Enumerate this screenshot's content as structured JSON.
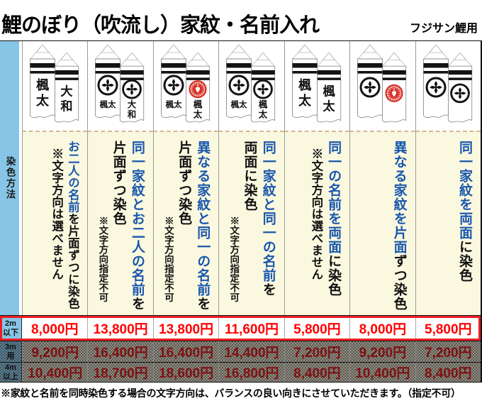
{
  "header": {
    "title": "鯉のぼり（吹流し）家紋・名前入れ",
    "subtitle": "フジサン鯉用"
  },
  "sidebar_label": "染色方法",
  "colors": {
    "accent_blue": "#1a57ad",
    "table_blue": "#86C5E6",
    "cream": "#FAF8DF",
    "price_red": "#FF0000",
    "border_red": "#ED1C24",
    "crest_red": "#D8352B",
    "crest_black": "#131313",
    "disabled_red": "#7E1111"
  },
  "columns": [
    {
      "flags": {
        "front": {
          "crest": null,
          "name": "楓太"
        },
        "back": {
          "crest": null,
          "name": "大和"
        }
      },
      "description": {
        "lines": [
          {
            "compact": true,
            "segments": [
              {
                "text": "お二人の名前",
                "blue": true
              },
              {
                "text": "を片面ずつに染色",
                "blue": false
              }
            ]
          }
        ],
        "note": {
          "text": "※文字方向は選べません",
          "small": false
        }
      }
    },
    {
      "flags": {
        "front": {
          "crest": "black",
          "name": "楓太"
        },
        "back": {
          "crest": "black",
          "name": "大和"
        }
      },
      "description": {
        "lines": [
          {
            "compact": false,
            "segments": [
              {
                "text": "同一家紋とお二人の名前",
                "blue": true
              },
              {
                "text": "を",
                "blue": false
              }
            ]
          },
          {
            "compact": false,
            "segments": [
              {
                "text": "片面ずつ染色",
                "blue": false
              }
            ]
          }
        ],
        "note": {
          "text": "※文字方向指定不可",
          "small": true
        }
      }
    },
    {
      "flags": {
        "front": {
          "crest": "black",
          "name": "楓太"
        },
        "back": {
          "crest": "red",
          "name": "楓太"
        }
      },
      "description": {
        "lines": [
          {
            "compact": false,
            "segments": [
              {
                "text": "異なる家紋と同一の名前",
                "blue": true
              },
              {
                "text": "を",
                "blue": false
              }
            ]
          },
          {
            "compact": false,
            "segments": [
              {
                "text": "片面ずつ染色",
                "blue": false
              }
            ]
          }
        ],
        "note": {
          "text": "※文字方向指定不可",
          "small": true
        }
      }
    },
    {
      "flags": {
        "front": {
          "crest": "black",
          "name": "楓太"
        },
        "back": {
          "crest": "black",
          "name": "楓太"
        }
      },
      "description": {
        "lines": [
          {
            "compact": false,
            "segments": [
              {
                "text": "同一家紋と同一の名前",
                "blue": true
              },
              {
                "text": "を",
                "blue": false
              }
            ]
          },
          {
            "compact": false,
            "segments": [
              {
                "text": "両面に染色",
                "blue": false
              }
            ]
          }
        ],
        "note": {
          "text": "※文字方向指定不可",
          "small": true
        }
      }
    },
    {
      "flags": {
        "front": {
          "crest": null,
          "name": "楓太"
        },
        "back": {
          "crest": null,
          "name": "楓太"
        }
      },
      "description": {
        "lines": [
          {
            "compact": false,
            "segments": [
              {
                "text": "同一の名前を両面",
                "blue": true
              },
              {
                "text": "に染色",
                "blue": false
              }
            ]
          }
        ],
        "note": {
          "text": "※文字方向は選べません",
          "small": false
        }
      }
    },
    {
      "flags": {
        "front": {
          "crest": "black",
          "name": null
        },
        "back": {
          "crest": "red",
          "name": null
        }
      },
      "description": {
        "lines": [
          {
            "compact": false,
            "segments": [
              {
                "text": "異なる家紋を片面",
                "blue": true
              },
              {
                "text": "ずつ染色",
                "blue": false
              }
            ]
          }
        ],
        "note": null
      }
    },
    {
      "flags": {
        "front": {
          "crest": "black",
          "name": null
        },
        "back": {
          "crest": "black",
          "name": null
        }
      },
      "description": {
        "lines": [
          {
            "compact": false,
            "segments": [
              {
                "text": "同一家紋を両面",
                "blue": true
              },
              {
                "text": "に染色",
                "blue": false
              }
            ]
          }
        ],
        "note": null
      }
    }
  ],
  "price_rows": [
    {
      "label_lines": [
        "2m",
        "以下"
      ],
      "state": "highlight",
      "values": [
        "8,000円",
        "13,800円",
        "13,800円",
        "11,600円",
        "5,800円",
        "8,000円",
        "5,800円"
      ]
    },
    {
      "label_lines": [
        "3m",
        "用"
      ],
      "state": "disabled",
      "values": [
        "9,200円",
        "16,400円",
        "16,400円",
        "14,400円",
        "7,200円",
        "9,200円",
        "7,200円"
      ]
    },
    {
      "label_lines": [
        "4m",
        "以上"
      ],
      "state": "disabled",
      "values": [
        "10,400円",
        "18,700円",
        "18,600円",
        "16,800円",
        "8,400円",
        "10,400円",
        "8,400円"
      ]
    }
  ],
  "footnote": "※家紋と名前を同時染色する場合の文字方向は、バランスの良い向きにさせていただきます。（指定不可）"
}
